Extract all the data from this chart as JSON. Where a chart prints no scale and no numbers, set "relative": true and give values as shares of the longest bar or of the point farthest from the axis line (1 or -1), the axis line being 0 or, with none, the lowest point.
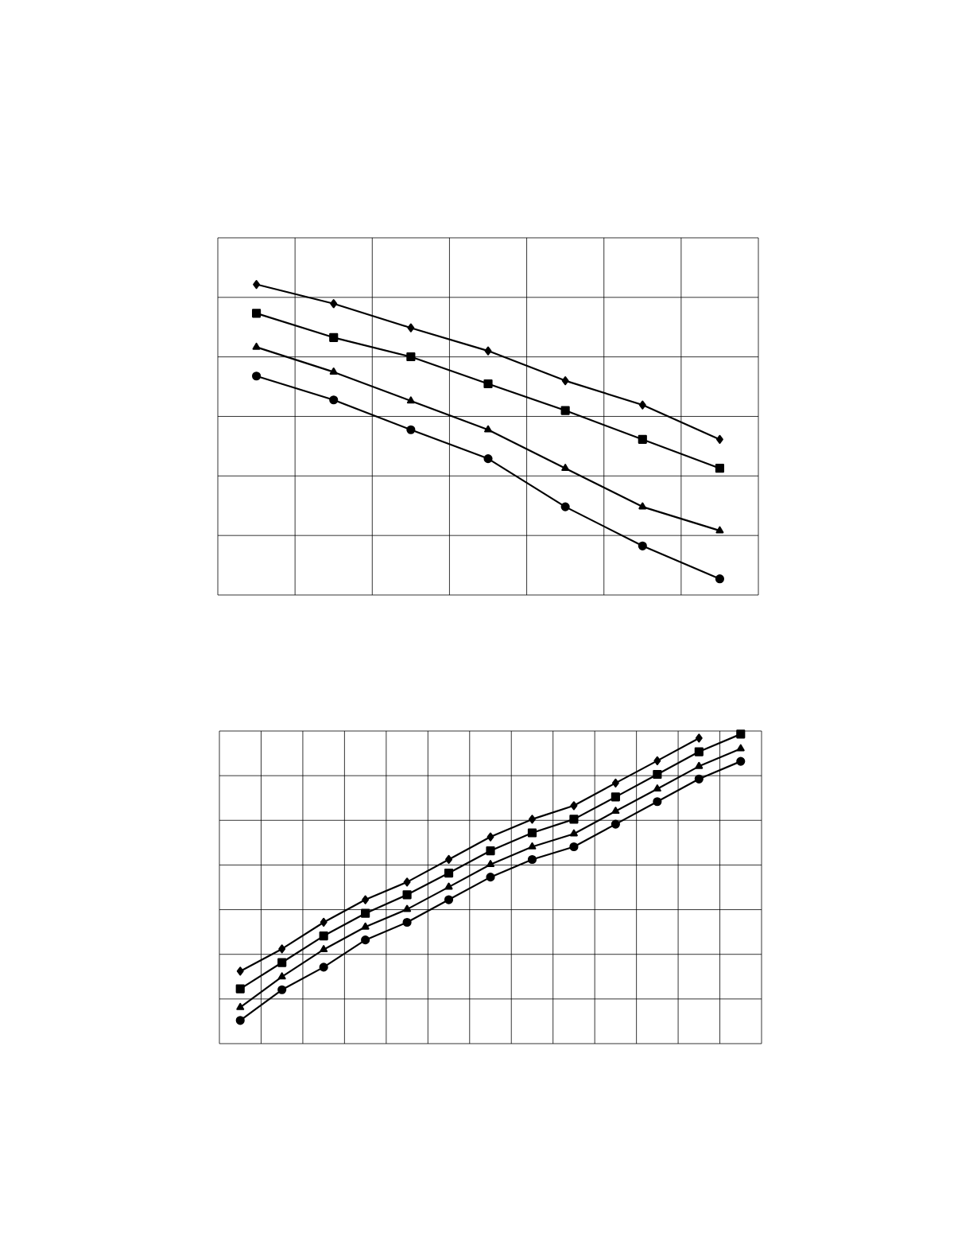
{
  "chart_data": [
    {
      "type": "line",
      "relative": true,
      "grid": true,
      "categories": [
        null,
        null,
        null,
        null,
        null,
        null,
        null
      ],
      "series": [
        {
          "color": "#000000",
          "marker": "circle",
          "values": [
            0.705,
            0.628,
            0.532,
            0.439,
            0.284,
            0.158,
            0.052
          ]
        },
        {
          "color": "#000000",
          "marker": "triangle",
          "values": [
            0.798,
            0.718,
            0.625,
            0.532,
            0.408,
            0.284,
            0.207
          ]
        },
        {
          "color": "#000000",
          "marker": "square",
          "values": [
            0.907,
            0.829,
            0.767,
            0.68,
            0.594,
            0.501,
            0.408
          ]
        },
        {
          "color": "#000000",
          "marker": "diamond",
          "values": [
            1,
            0.938,
            0.86,
            0.786,
            0.69,
            0.612,
            0.501
          ]
        }
      ]
    },
    {
      "type": "line",
      "relative": true,
      "grid": true,
      "categories": [
        null,
        null,
        null,
        null,
        null,
        null,
        null,
        null,
        null,
        null,
        null,
        null,
        null
      ],
      "series": [
        {
          "color": "#000000",
          "marker": "circle",
          "values": [
            0.075,
            0.174,
            0.247,
            0.335,
            0.392,
            0.465,
            0.538,
            0.595,
            0.636,
            0.709,
            0.782,
            0.855,
            0.912
          ]
        },
        {
          "color": "#000000",
          "marker": "triangle",
          "values": [
            0.117,
            0.216,
            0.304,
            0.377,
            0.434,
            0.506,
            0.579,
            0.636,
            0.678,
            0.751,
            0.823,
            0.896,
            0.953
          ]
        },
        {
          "color": "#000000",
          "marker": "square",
          "values": [
            0.177,
            0.262,
            0.348,
            0.421,
            0.481,
            0.551,
            0.623,
            0.681,
            0.725,
            0.797,
            0.87,
            0.943,
            1
          ]
        },
        {
          "color": "#000000",
          "marker": "diamond",
          "values": [
            0.234,
            0.306,
            0.392,
            0.465,
            0.522,
            0.595,
            0.668,
            0.725,
            0.769,
            0.842,
            0.914,
            0.987,
            null
          ]
        }
      ]
    }
  ]
}
